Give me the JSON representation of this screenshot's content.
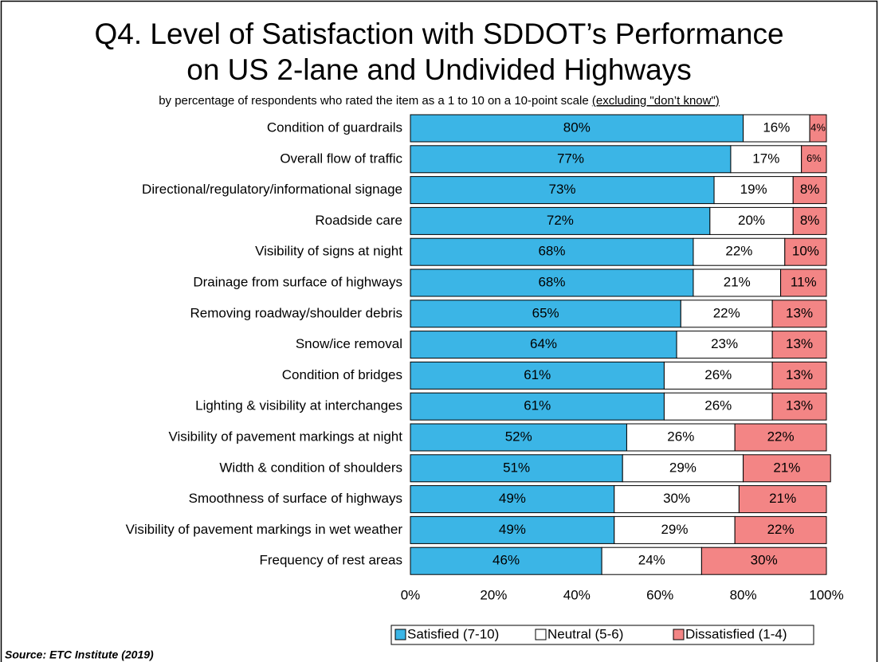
{
  "chart_data": {
    "type": "stacked-bar-horizontal",
    "title": [
      "Q4. Level of Satisfaction with SDDOT’s Performance",
      "on US 2-lane and Undivided Highways"
    ],
    "subtitle": "by percentage of respondents who rated the item as a 1 to 10 on a 10-point scale",
    "subtitle_note": "(excluding \"don’t know\")",
    "source": "Source:  ETC Institute (2019)",
    "categories": [
      "Condition of guardrails",
      "Overall flow of traffic",
      "Directional/regulatory/informational signage",
      "Roadside care",
      "Visibility of signs at night",
      "Drainage from surface of highways",
      "Removing roadway/shoulder debris",
      "Snow/ice removal",
      "Condition of bridges",
      "Lighting & visibility at interchanges",
      "Visibility of pavement markings at night",
      "Width & condition of shoulders",
      "Smoothness of surface of highways",
      "Visibility of pavement markings in wet weather",
      "Frequency of rest areas"
    ],
    "series": [
      {
        "name": "Satisfied (7-10)",
        "color": "#3bb5e6",
        "values": [
          80,
          77,
          73,
          72,
          68,
          68,
          65,
          64,
          61,
          61,
          52,
          51,
          49,
          49,
          46
        ],
        "value_labels": [
          "80%",
          "77%",
          "73%",
          "72%",
          "68%",
          "68%",
          "65%",
          "64%",
          "61%",
          "61%",
          "52%",
          "51%",
          "49%",
          "49%",
          "46%"
        ]
      },
      {
        "name": "Neutral (5-6)",
        "color": "#ffffff",
        "values": [
          16,
          17,
          19,
          20,
          22,
          21,
          22,
          23,
          26,
          26,
          26,
          29,
          30,
          29,
          24
        ],
        "value_labels": [
          "16%",
          "17%",
          "19%",
          "20%",
          "22%",
          "21%",
          "22%",
          "23%",
          "26%",
          "26%",
          "26%",
          "29%",
          "30%",
          "29%",
          "24%"
        ]
      },
      {
        "name": "Dissatisfied (1-4)",
        "color": "#f38585",
        "values": [
          4,
          6,
          8,
          8,
          10,
          11,
          13,
          13,
          13,
          13,
          22,
          21,
          21,
          22,
          30
        ],
        "value_labels": [
          "4%",
          "6%",
          "8%",
          "8%",
          "10%",
          "11%",
          "13%",
          "13%",
          "13%",
          "13%",
          "22%",
          "21%",
          "21%",
          "22%",
          "30%"
        ]
      }
    ],
    "xlim": [
      0,
      100
    ],
    "xticks": [
      {
        "value": 0,
        "label": "0%"
      },
      {
        "value": 20,
        "label": "20%"
      },
      {
        "value": 40,
        "label": "40%"
      },
      {
        "value": 60,
        "label": "60%"
      },
      {
        "value": 80,
        "label": "80%"
      },
      {
        "value": 100,
        "label": "100%"
      }
    ],
    "legend": "bottom"
  }
}
